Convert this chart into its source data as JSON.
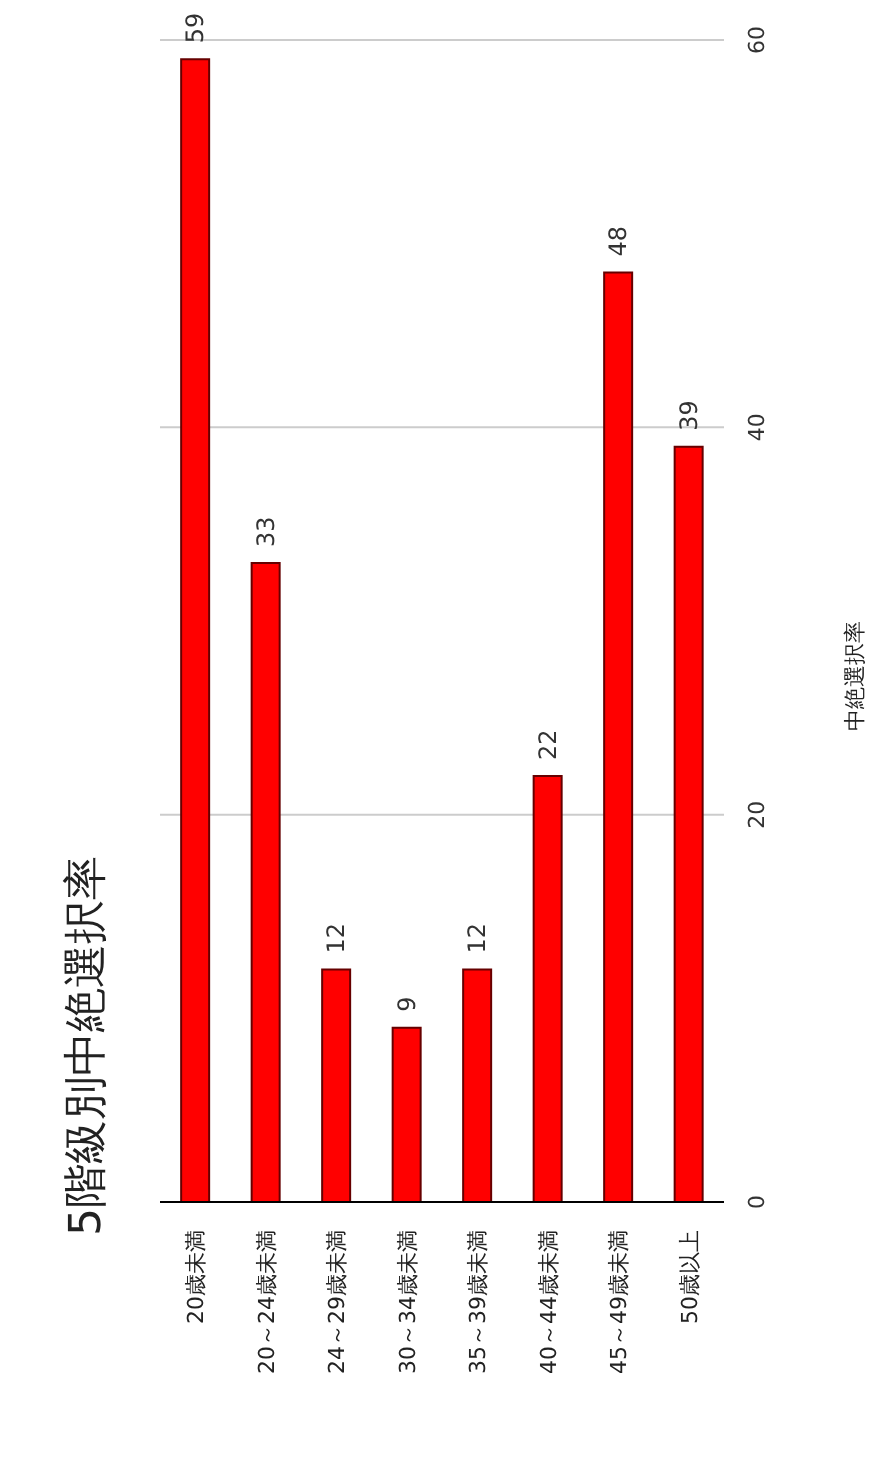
{
  "chart_data": {
    "type": "bar",
    "title": "5階級別中絶選択率",
    "ylabel": "中絶選択率",
    "categories": [
      "20歳未満",
      "20～24歳未満",
      "24～29歳未満",
      "30～34歳未満",
      "35～39歳未満",
      "40～44歳未満",
      "45～49歳未満",
      "50歳以上"
    ],
    "values": [
      59,
      33,
      12,
      9,
      12,
      22,
      48,
      39
    ],
    "color": "#ff0000",
    "ylim": [
      0,
      60
    ],
    "yticks": [
      0,
      20,
      40,
      60
    ],
    "grid": "y",
    "data_labels": true
  }
}
